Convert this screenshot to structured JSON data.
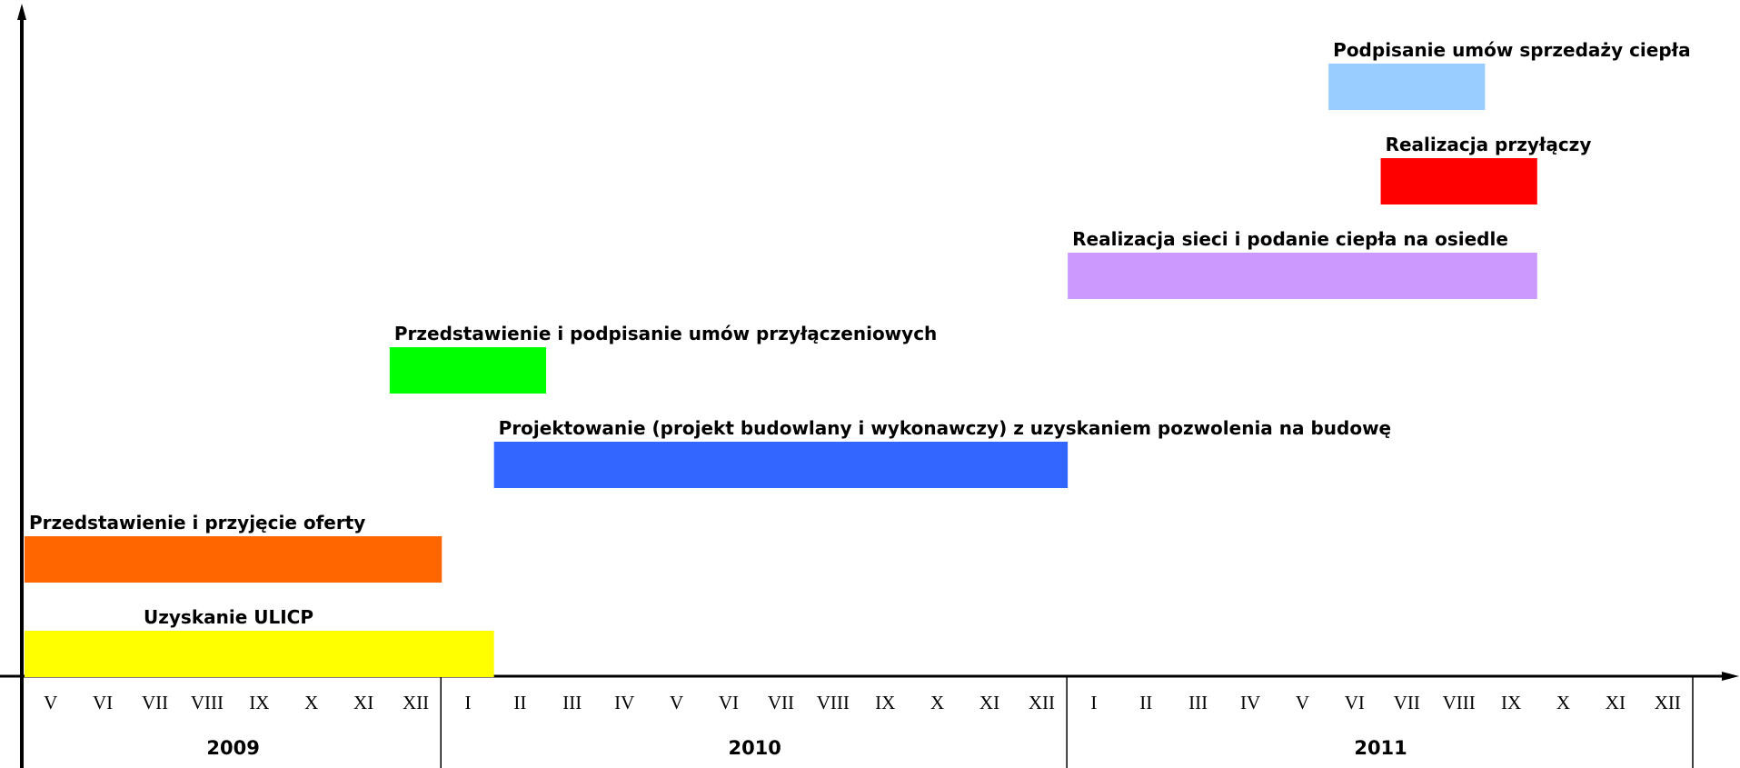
{
  "chart_data": {
    "type": "gantt",
    "months": [
      "V",
      "VI",
      "VII",
      "VIII",
      "IX",
      "X",
      "XI",
      "XII",
      "I",
      "II",
      "III",
      "IV",
      "V",
      "VI",
      "VII",
      "VIII",
      "IX",
      "X",
      "XI",
      "XII",
      "I",
      "II",
      "III",
      "IV",
      "V",
      "VI",
      "VII",
      "VIII",
      "IX",
      "X",
      "XI",
      "XII"
    ],
    "xlim": [
      0,
      32
    ],
    "years": [
      {
        "label": "2009",
        "start": 0,
        "end": 8
      },
      {
        "label": "2010",
        "start": 8,
        "end": 20
      },
      {
        "label": "2011",
        "start": 20,
        "end": 32
      }
    ],
    "tasks": [
      {
        "name": "Uzyskanie ULICP",
        "color": "#ffff00",
        "start": 0,
        "end": 9
      },
      {
        "name": "Przedstawienie i przyjęcie oferty",
        "color": "#ff6600",
        "start": 0,
        "end": 8
      },
      {
        "name": "Projektowanie (projekt budowlany i wykonawczy) z uzyskaniem pozwolenia na budowę",
        "color": "#3366ff",
        "start": 9,
        "end": 20
      },
      {
        "name": "Przedstawienie i podpisanie umów przyłączeniowych",
        "color": "#00ff00",
        "start": 7,
        "end": 10
      },
      {
        "name": "Realizacja sieci i podanie ciepła na osiedle",
        "color": "#cc99ff",
        "start": 20,
        "end": 29
      },
      {
        "name": "Realizacja przyłączy",
        "color": "#ff0000",
        "start": 26,
        "end": 29
      },
      {
        "name": "Podpisanie umów sprzedaży ciepła",
        "color": "#99ccff",
        "start": 25,
        "end": 28
      }
    ]
  }
}
